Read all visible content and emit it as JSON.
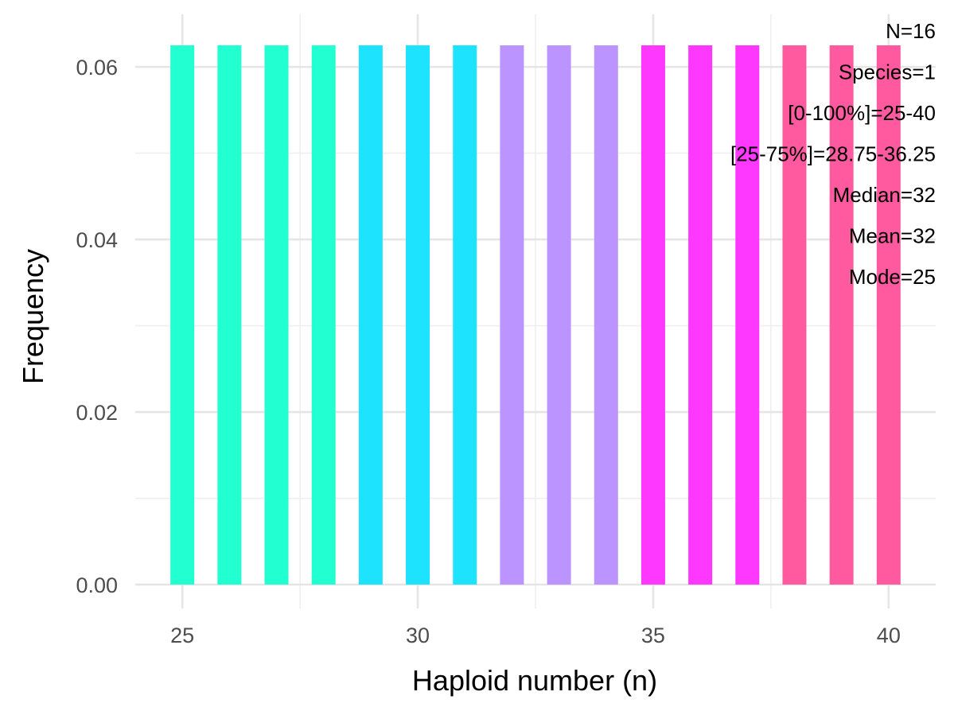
{
  "chart_data": {
    "type": "bar",
    "xlabel": "Haploid number (n)",
    "ylabel": "Frequency",
    "xlim": [
      24,
      41
    ],
    "ylim": [
      0,
      0.0625
    ],
    "x_ticks": [
      25,
      30,
      35,
      40
    ],
    "y_ticks": [
      0.0,
      0.02,
      0.04,
      0.06
    ],
    "x_tick_labels": [
      "25",
      "30",
      "35",
      "40"
    ],
    "y_tick_labels": [
      "0.00",
      "0.02",
      "0.04",
      "0.06"
    ],
    "grid": true,
    "x": [
      25,
      26,
      27,
      28,
      29,
      30,
      31,
      32,
      33,
      34,
      35,
      36,
      37,
      38,
      39,
      40
    ],
    "values": [
      0.0625,
      0.0625,
      0.0625,
      0.0625,
      0.0625,
      0.0625,
      0.0625,
      0.0625,
      0.0625,
      0.0625,
      0.0625,
      0.0625,
      0.0625,
      0.0625,
      0.0625,
      0.0625
    ],
    "colors": [
      "#22FFD1",
      "#22FFD1",
      "#22FFD1",
      "#22FFD1",
      "#1EE3FF",
      "#1EE3FF",
      "#1EE3FF",
      "#BB94FF",
      "#BB94FF",
      "#BB94FF",
      "#FF38FF",
      "#FF38FF",
      "#FF38FF",
      "#FF5AA0",
      "#FF5AA0",
      "#FF5AA0"
    ],
    "annotations": [
      "N=16",
      "Species=1",
      "[0-100%]=25-40",
      "[25-75%]=28.75-36.25",
      "Median=32",
      "Mean=32",
      "Mode=25"
    ]
  }
}
